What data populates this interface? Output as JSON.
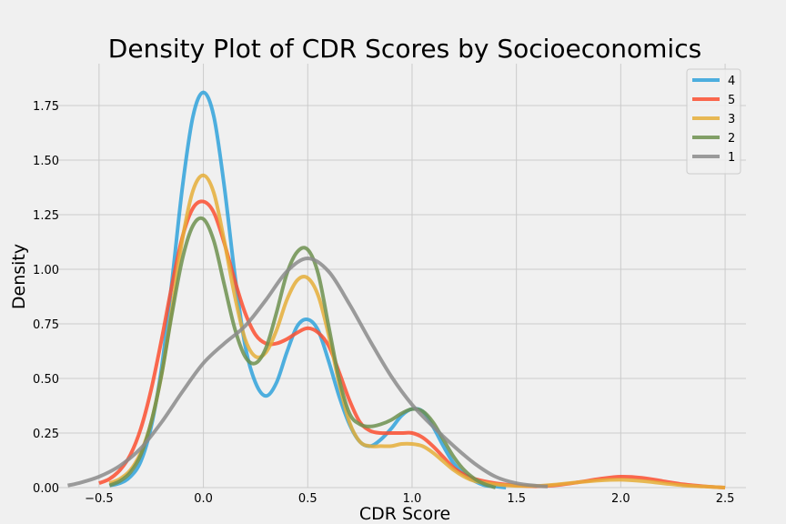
{
  "chart_data": {
    "type": "line",
    "title": "Density Plot of CDR Scores by Socioeconomics",
    "xlabel": "CDR Score",
    "ylabel": "Density",
    "xlim": [
      -0.7,
      2.6
    ],
    "ylim": [
      0,
      1.9
    ],
    "xticks": [
      -0.5,
      0.0,
      0.5,
      1.0,
      1.5,
      2.0,
      2.5
    ],
    "xtick_labels": [
      "−0.5",
      "0.0",
      "0.5",
      "1.0",
      "1.5",
      "2.0",
      "2.5"
    ],
    "yticks": [
      0.0,
      0.25,
      0.5,
      0.75,
      1.0,
      1.25,
      1.5,
      1.75
    ],
    "ytick_labels": [
      "0.00",
      "0.25",
      "0.50",
      "0.75",
      "1.00",
      "1.25",
      "1.50",
      "1.75"
    ],
    "grid": true,
    "legend_position": "top-right",
    "series": [
      {
        "name": "4",
        "color": "#30a2da",
        "x": [
          -0.45,
          -0.4,
          -0.35,
          -0.3,
          -0.25,
          -0.2,
          -0.15,
          -0.1,
          -0.05,
          0.0,
          0.05,
          0.1,
          0.15,
          0.2,
          0.25,
          0.3,
          0.35,
          0.4,
          0.45,
          0.5,
          0.55,
          0.6,
          0.65,
          0.7,
          0.75,
          0.8,
          0.85,
          0.9,
          0.95,
          1.0,
          1.05,
          1.1,
          1.15,
          1.2,
          1.25,
          1.3,
          1.35,
          1.4,
          1.45
        ],
        "y": [
          0.01,
          0.02,
          0.05,
          0.12,
          0.28,
          0.55,
          0.95,
          1.38,
          1.7,
          1.81,
          1.7,
          1.38,
          0.98,
          0.65,
          0.48,
          0.42,
          0.48,
          0.62,
          0.74,
          0.77,
          0.72,
          0.58,
          0.42,
          0.29,
          0.21,
          0.19,
          0.22,
          0.27,
          0.33,
          0.36,
          0.35,
          0.28,
          0.19,
          0.11,
          0.06,
          0.03,
          0.01,
          0.005,
          0.0
        ]
      },
      {
        "name": "5",
        "color": "#fc4f30",
        "x": [
          -0.5,
          -0.45,
          -0.4,
          -0.35,
          -0.3,
          -0.25,
          -0.2,
          -0.15,
          -0.1,
          -0.05,
          0.0,
          0.05,
          0.1,
          0.15,
          0.2,
          0.25,
          0.3,
          0.35,
          0.4,
          0.45,
          0.5,
          0.55,
          0.6,
          0.65,
          0.7,
          0.75,
          0.8,
          0.85,
          0.9,
          0.95,
          1.0,
          1.05,
          1.1,
          1.15,
          1.2,
          1.25,
          1.3,
          1.4,
          1.5,
          1.6,
          1.7,
          1.8,
          1.9,
          2.0,
          2.1,
          2.2,
          2.3,
          2.4,
          2.5
        ],
        "y": [
          0.02,
          0.04,
          0.08,
          0.15,
          0.27,
          0.45,
          0.68,
          0.93,
          1.15,
          1.28,
          1.31,
          1.26,
          1.12,
          0.95,
          0.8,
          0.7,
          0.66,
          0.66,
          0.68,
          0.71,
          0.73,
          0.71,
          0.65,
          0.53,
          0.4,
          0.3,
          0.26,
          0.25,
          0.25,
          0.25,
          0.25,
          0.23,
          0.19,
          0.14,
          0.09,
          0.06,
          0.04,
          0.02,
          0.01,
          0.006,
          0.012,
          0.025,
          0.04,
          0.05,
          0.045,
          0.03,
          0.015,
          0.006,
          0.0
        ]
      },
      {
        "name": "3",
        "color": "#e5ae38",
        "x": [
          -0.45,
          -0.4,
          -0.35,
          -0.3,
          -0.25,
          -0.2,
          -0.15,
          -0.1,
          -0.05,
          0.0,
          0.05,
          0.1,
          0.15,
          0.2,
          0.25,
          0.3,
          0.35,
          0.4,
          0.45,
          0.5,
          0.55,
          0.6,
          0.65,
          0.7,
          0.75,
          0.8,
          0.85,
          0.9,
          0.95,
          1.0,
          1.05,
          1.1,
          1.15,
          1.2,
          1.25,
          1.3,
          1.4,
          1.5,
          1.6,
          1.7,
          1.8,
          1.9,
          2.0,
          2.1,
          2.2,
          2.3,
          2.4,
          2.5
        ],
        "y": [
          0.02,
          0.04,
          0.08,
          0.16,
          0.3,
          0.52,
          0.82,
          1.14,
          1.36,
          1.43,
          1.35,
          1.13,
          0.88,
          0.68,
          0.6,
          0.62,
          0.72,
          0.86,
          0.95,
          0.96,
          0.88,
          0.7,
          0.48,
          0.3,
          0.21,
          0.19,
          0.19,
          0.19,
          0.2,
          0.2,
          0.19,
          0.16,
          0.12,
          0.08,
          0.05,
          0.03,
          0.015,
          0.008,
          0.008,
          0.015,
          0.025,
          0.033,
          0.036,
          0.03,
          0.02,
          0.01,
          0.005,
          0.0
        ]
      },
      {
        "name": "2",
        "color": "#6d904f",
        "x": [
          -0.45,
          -0.4,
          -0.35,
          -0.3,
          -0.25,
          -0.2,
          -0.15,
          -0.1,
          -0.05,
          0.0,
          0.05,
          0.1,
          0.15,
          0.2,
          0.25,
          0.3,
          0.35,
          0.4,
          0.45,
          0.5,
          0.55,
          0.6,
          0.65,
          0.7,
          0.75,
          0.8,
          0.85,
          0.9,
          0.95,
          1.0,
          1.05,
          1.1,
          1.15,
          1.2,
          1.25,
          1.3,
          1.35,
          1.4
        ],
        "y": [
          0.01,
          0.03,
          0.07,
          0.15,
          0.3,
          0.52,
          0.8,
          1.05,
          1.2,
          1.23,
          1.13,
          0.93,
          0.73,
          0.6,
          0.57,
          0.64,
          0.8,
          0.98,
          1.08,
          1.09,
          0.98,
          0.74,
          0.5,
          0.34,
          0.29,
          0.28,
          0.29,
          0.31,
          0.34,
          0.36,
          0.35,
          0.3,
          0.22,
          0.14,
          0.08,
          0.04,
          0.015,
          0.0
        ]
      },
      {
        "name": "1",
        "color": "#8b8b8b",
        "x": [
          -0.65,
          -0.6,
          -0.5,
          -0.4,
          -0.3,
          -0.2,
          -0.1,
          0.0,
          0.1,
          0.2,
          0.3,
          0.4,
          0.5,
          0.6,
          0.7,
          0.8,
          0.9,
          1.0,
          1.1,
          1.2,
          1.3,
          1.4,
          1.5,
          1.6,
          1.65
        ],
        "y": [
          0.01,
          0.02,
          0.05,
          0.1,
          0.18,
          0.3,
          0.44,
          0.57,
          0.66,
          0.74,
          0.86,
          0.99,
          1.05,
          0.99,
          0.84,
          0.67,
          0.51,
          0.38,
          0.28,
          0.19,
          0.11,
          0.05,
          0.02,
          0.008,
          0.005
        ]
      }
    ]
  }
}
